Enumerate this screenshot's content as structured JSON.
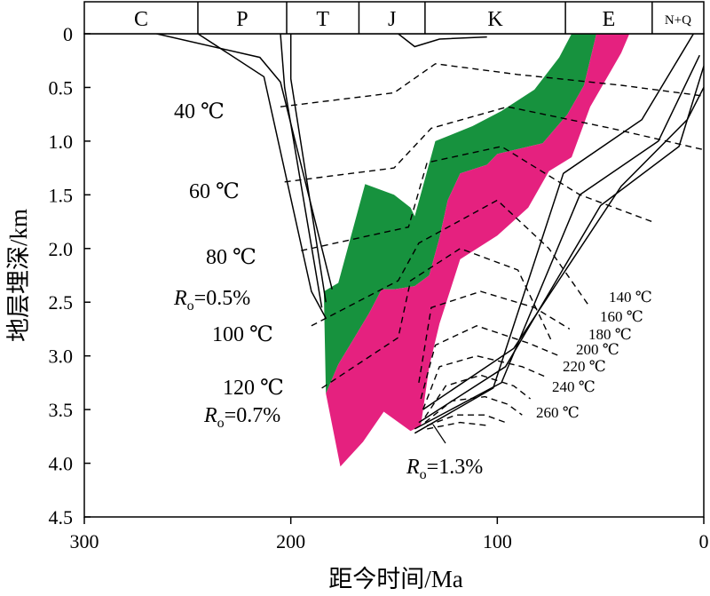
{
  "chart_data": {
    "type": "burial-history",
    "xlabel": "距今时间/Ma",
    "ylabel": "地层埋深/km",
    "x_reversed": true,
    "xlim": [
      300,
      0
    ],
    "ylim": [
      0,
      4.5
    ],
    "x_ticks": [
      {
        "value": 300,
        "label": "300"
      },
      {
        "value": 200,
        "label": "200"
      },
      {
        "value": 100,
        "label": "100"
      },
      {
        "value": 0,
        "label": "0"
      }
    ],
    "y_ticks": [
      {
        "value": 0,
        "label": "0"
      },
      {
        "value": 0.5,
        "label": "0.5"
      },
      {
        "value": 1.0,
        "label": "1.0"
      },
      {
        "value": 1.5,
        "label": "1.5"
      },
      {
        "value": 2.0,
        "label": "2.0"
      },
      {
        "value": 2.5,
        "label": "2.5"
      },
      {
        "value": 3.0,
        "label": "3.0"
      },
      {
        "value": 3.5,
        "label": "3.5"
      },
      {
        "value": 4.0,
        "label": "4.0"
      },
      {
        "value": 4.5,
        "label": "4.5"
      }
    ],
    "periods": [
      {
        "label": "C",
        "from": 300,
        "to": 245
      },
      {
        "label": "P",
        "from": 245,
        "to": 202
      },
      {
        "label": "T",
        "from": 202,
        "to": 167
      },
      {
        "label": "J",
        "from": 167,
        "to": 135
      },
      {
        "label": "K",
        "from": 135,
        "to": 67
      },
      {
        "label": "E",
        "from": 67,
        "to": 25
      },
      {
        "label": "N+Q",
        "from": 25,
        "to": 0
      }
    ],
    "burial_curves": [
      [
        [
          265,
          0
        ],
        [
          215,
          0.22
        ],
        [
          205,
          0.45
        ],
        [
          180,
          2.38
        ]
      ],
      [
        [
          245,
          0
        ],
        [
          213,
          0.4
        ],
        [
          190,
          2.4
        ],
        [
          183,
          2.65
        ]
      ],
      [
        [
          205,
          0
        ],
        [
          203,
          0.5
        ],
        [
          185,
          2.55
        ]
      ],
      [
        [
          200,
          0
        ],
        [
          200,
          0.42
        ],
        [
          183,
          2.5
        ]
      ],
      [
        [
          148,
          0
        ],
        [
          140,
          0.12
        ],
        [
          128,
          0.05
        ],
        [
          105,
          0.03
        ]
      ],
      [
        [
          140,
          3.72
        ],
        [
          102,
          3.3
        ],
        [
          68,
          1.3
        ],
        [
          30,
          0.8
        ],
        [
          5,
          0
        ]
      ],
      [
        [
          140,
          3.68
        ],
        [
          98,
          3.25
        ],
        [
          60,
          1.5
        ],
        [
          22,
          1.0
        ],
        [
          2,
          0.2
        ]
      ],
      [
        [
          138,
          3.62
        ],
        [
          96,
          3.1
        ],
        [
          50,
          1.6
        ],
        [
          12,
          1.05
        ],
        [
          0,
          0.3
        ]
      ],
      [
        [
          136,
          3.5
        ],
        [
          92,
          2.93
        ],
        [
          40,
          1.42
        ],
        [
          8,
          0.8
        ],
        [
          0,
          0.5
        ]
      ]
    ],
    "isotherms": [
      {
        "label": "40 ℃",
        "points": [
          [
            205,
            0.68
          ],
          [
            150,
            0.55
          ],
          [
            130,
            0.28
          ],
          [
            90,
            0.38
          ],
          [
            40,
            0.48
          ],
          [
            0,
            0.58
          ]
        ]
      },
      {
        "label": "60 ℃",
        "points": [
          [
            203,
            1.38
          ],
          [
            150,
            1.25
          ],
          [
            132,
            0.88
          ],
          [
            95,
            0.68
          ],
          [
            45,
            0.88
          ],
          [
            0,
            1.08
          ]
        ]
      },
      {
        "label": "80 ℃",
        "points": [
          [
            195,
            2.02
          ],
          [
            143,
            1.8
          ],
          [
            134,
            1.2
          ],
          [
            98,
            1.05
          ],
          [
            60,
            1.5
          ],
          [
            25,
            1.75
          ]
        ]
      },
      {
        "label": "100 ℃",
        "points": [
          [
            190,
            2.72
          ],
          [
            148,
            2.3
          ],
          [
            138,
            1.95
          ],
          [
            100,
            1.55
          ],
          [
            75,
            2.0
          ],
          [
            55,
            2.55
          ]
        ]
      },
      {
        "label": "120 ℃",
        "points": [
          [
            185,
            3.3
          ],
          [
            148,
            2.83
          ],
          [
            142,
            2.3
          ],
          [
            118,
            2.0
          ],
          [
            90,
            2.2
          ],
          [
            74,
            2.85
          ]
        ]
      },
      {
        "label": "140 ℃",
        "points": [
          [
            138,
            3.25
          ],
          [
            132,
            2.55
          ],
          [
            108,
            2.4
          ],
          [
            82,
            2.55
          ],
          [
            65,
            2.75
          ]
        ]
      },
      {
        "label": "160 ℃",
        "points": [
          [
            137,
            3.4
          ],
          [
            130,
            2.9
          ],
          [
            110,
            2.72
          ],
          [
            85,
            2.88
          ],
          [
            70,
            3.0
          ]
        ]
      },
      {
        "label": "180 ℃",
        "points": [
          [
            136,
            3.5
          ],
          [
            128,
            3.1
          ],
          [
            110,
            3.0
          ],
          [
            88,
            3.1
          ],
          [
            76,
            3.2
          ]
        ]
      },
      {
        "label": "200 ℃",
        "points": [
          [
            135,
            3.57
          ],
          [
            125,
            3.28
          ],
          [
            108,
            3.18
          ],
          [
            92,
            3.28
          ],
          [
            84,
            3.4
          ]
        ]
      },
      {
        "label": "220 ℃",
        "points": [
          [
            135,
            3.62
          ],
          [
            122,
            3.42
          ],
          [
            106,
            3.38
          ],
          [
            95,
            3.45
          ],
          [
            88,
            3.55
          ]
        ]
      },
      {
        "label": "240 ℃",
        "points": [
          [
            134,
            3.65
          ],
          [
            120,
            3.55
          ],
          [
            106,
            3.55
          ],
          [
            96,
            3.62
          ]
        ]
      },
      {
        "label": "260 ℃",
        "points": [
          [
            134,
            3.68
          ],
          [
            118,
            3.62
          ],
          [
            104,
            3.65
          ]
        ]
      }
    ],
    "maturity_zones": [
      {
        "name": "Ro 0.5%–0.7%",
        "color": "#17923e",
        "points": [
          [
            184,
            2.4
          ],
          [
            177,
            2.32
          ],
          [
            164,
            1.4
          ],
          [
            150,
            1.5
          ],
          [
            142,
            1.62
          ],
          [
            140,
            1.7
          ],
          [
            130,
            1.0
          ],
          [
            112,
            0.86
          ],
          [
            98,
            0.72
          ],
          [
            82,
            0.52
          ],
          [
            70,
            0.22
          ],
          [
            64,
            0
          ],
          [
            52,
            0
          ],
          [
            58,
            0.48
          ],
          [
            66,
            0.75
          ],
          [
            78,
            1.02
          ],
          [
            100,
            1.12
          ],
          [
            105,
            1.22
          ],
          [
            118,
            1.3
          ],
          [
            124,
            1.55
          ],
          [
            128,
            1.9
          ],
          [
            133,
            2.25
          ],
          [
            140,
            2.35
          ],
          [
            150,
            2.38
          ],
          [
            156,
            2.38
          ],
          [
            162,
            2.6
          ],
          [
            177,
            3.08
          ],
          [
            183,
            3.35
          ]
        ]
      },
      {
        "name": "Ro 0.7%–1.3%",
        "color": "#e5217f",
        "points": [
          [
            183,
            3.35
          ],
          [
            177,
            3.08
          ],
          [
            162,
            2.6
          ],
          [
            156,
            2.38
          ],
          [
            150,
            2.38
          ],
          [
            140,
            2.35
          ],
          [
            133,
            2.25
          ],
          [
            128,
            1.9
          ],
          [
            124,
            1.55
          ],
          [
            118,
            1.3
          ],
          [
            105,
            1.22
          ],
          [
            100,
            1.12
          ],
          [
            78,
            1.02
          ],
          [
            66,
            0.75
          ],
          [
            58,
            0.48
          ],
          [
            52,
            0
          ],
          [
            36,
            0
          ],
          [
            40,
            0.18
          ],
          [
            55,
            0.68
          ],
          [
            64,
            1.15
          ],
          [
            75,
            1.28
          ],
          [
            85,
            1.62
          ],
          [
            100,
            1.88
          ],
          [
            118,
            2.1
          ],
          [
            128,
            2.7
          ],
          [
            133,
            3.1
          ],
          [
            137,
            3.65
          ],
          [
            142,
            3.7
          ],
          [
            155,
            3.52
          ],
          [
            165,
            3.8
          ],
          [
            176,
            4.03
          ]
        ]
      }
    ],
    "ro_labels": [
      {
        "prefix": "R",
        "sub": "o",
        "value": "=0.5%"
      },
      {
        "prefix": "R",
        "sub": "o",
        "value": "=0.7%"
      },
      {
        "prefix": "R",
        "sub": "o",
        "value": "=1.3%"
      }
    ]
  }
}
